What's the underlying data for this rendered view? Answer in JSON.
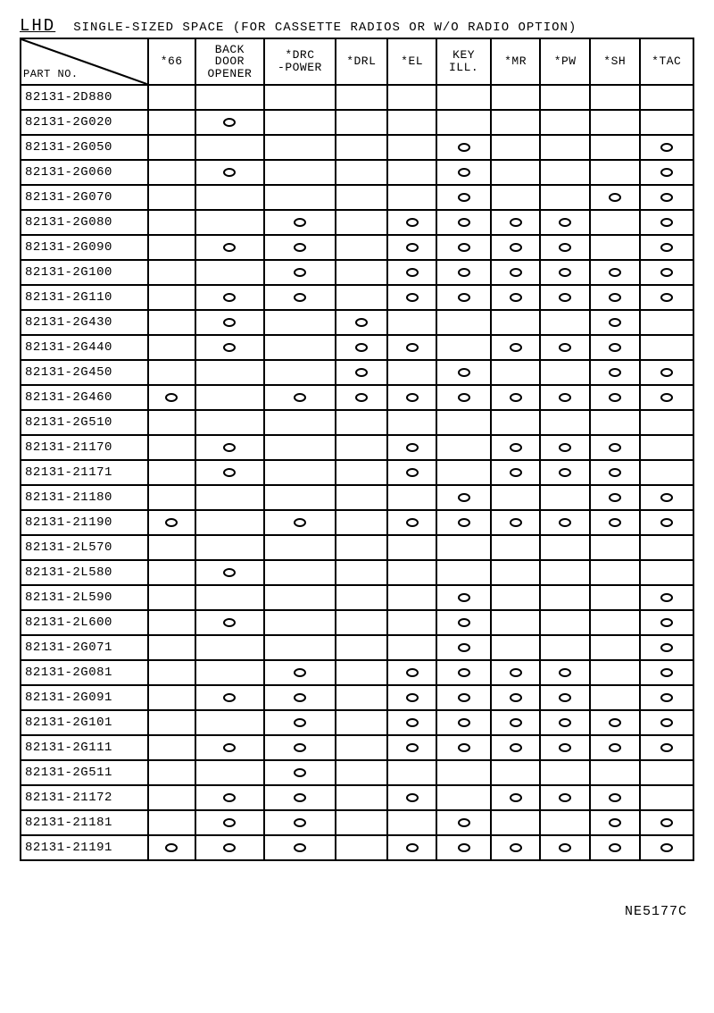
{
  "header": {
    "lhd": "LHD",
    "subtitle": "SINGLE-SIZED SPACE (FOR CASSETTE RADIOS OR W/O RADIO OPTION)"
  },
  "footer": "NE5177C",
  "columns": [
    "PART NO.",
    "*66",
    "BACK\nDOOR\nOPENER",
    "*DRC\n-POWER",
    "*DRL",
    "*EL",
    "KEY\nILL.",
    "*MR",
    "*PW",
    "*SH",
    "*TAC"
  ],
  "rows": [
    {
      "pn": "82131-2D880",
      "m": [
        0,
        0,
        0,
        0,
        0,
        0,
        0,
        0,
        0,
        0
      ]
    },
    {
      "pn": "82131-2G020",
      "m": [
        0,
        1,
        0,
        0,
        0,
        0,
        0,
        0,
        0,
        0
      ]
    },
    {
      "pn": "82131-2G050",
      "m": [
        0,
        0,
        0,
        0,
        0,
        1,
        0,
        0,
        0,
        1
      ]
    },
    {
      "pn": "82131-2G060",
      "m": [
        0,
        1,
        0,
        0,
        0,
        1,
        0,
        0,
        0,
        1
      ]
    },
    {
      "pn": "82131-2G070",
      "m": [
        0,
        0,
        0,
        0,
        0,
        1,
        0,
        0,
        1,
        1
      ]
    },
    {
      "pn": "82131-2G080",
      "m": [
        0,
        0,
        1,
        0,
        1,
        1,
        1,
        1,
        0,
        1
      ]
    },
    {
      "pn": "82131-2G090",
      "m": [
        0,
        1,
        1,
        0,
        1,
        1,
        1,
        1,
        0,
        1
      ]
    },
    {
      "pn": "82131-2G100",
      "m": [
        0,
        0,
        1,
        0,
        1,
        1,
        1,
        1,
        1,
        1
      ]
    },
    {
      "pn": "82131-2G110",
      "m": [
        0,
        1,
        1,
        0,
        1,
        1,
        1,
        1,
        1,
        1
      ]
    },
    {
      "pn": "82131-2G430",
      "m": [
        0,
        1,
        0,
        1,
        0,
        0,
        0,
        0,
        1,
        0
      ]
    },
    {
      "pn": "82131-2G440",
      "m": [
        0,
        1,
        0,
        1,
        1,
        0,
        1,
        1,
        1,
        0
      ]
    },
    {
      "pn": "82131-2G450",
      "m": [
        0,
        0,
        0,
        1,
        0,
        1,
        0,
        0,
        1,
        1
      ]
    },
    {
      "pn": "82131-2G460",
      "m": [
        1,
        0,
        1,
        1,
        1,
        1,
        1,
        1,
        1,
        1
      ]
    },
    {
      "pn": "82131-2G510",
      "m": [
        0,
        0,
        0,
        0,
        0,
        0,
        0,
        0,
        0,
        0
      ]
    },
    {
      "pn": "82131-21170",
      "m": [
        0,
        1,
        0,
        0,
        1,
        0,
        1,
        1,
        1,
        0
      ]
    },
    {
      "pn": "82131-21171",
      "m": [
        0,
        1,
        0,
        0,
        1,
        0,
        1,
        1,
        1,
        0
      ]
    },
    {
      "pn": "82131-21180",
      "m": [
        0,
        0,
        0,
        0,
        0,
        1,
        0,
        0,
        1,
        1
      ]
    },
    {
      "pn": "82131-21190",
      "m": [
        1,
        0,
        1,
        0,
        1,
        1,
        1,
        1,
        1,
        1
      ]
    },
    {
      "pn": "82131-2L570",
      "m": [
        0,
        0,
        0,
        0,
        0,
        0,
        0,
        0,
        0,
        0
      ]
    },
    {
      "pn": "82131-2L580",
      "m": [
        0,
        1,
        0,
        0,
        0,
        0,
        0,
        0,
        0,
        0
      ]
    },
    {
      "pn": "82131-2L590",
      "m": [
        0,
        0,
        0,
        0,
        0,
        1,
        0,
        0,
        0,
        1
      ]
    },
    {
      "pn": "82131-2L600",
      "m": [
        0,
        1,
        0,
        0,
        0,
        1,
        0,
        0,
        0,
        1
      ]
    },
    {
      "pn": "82131-2G071",
      "m": [
        0,
        0,
        0,
        0,
        0,
        1,
        0,
        0,
        0,
        1
      ]
    },
    {
      "pn": "82131-2G081",
      "m": [
        0,
        0,
        1,
        0,
        1,
        1,
        1,
        1,
        0,
        1
      ]
    },
    {
      "pn": "82131-2G091",
      "m": [
        0,
        1,
        1,
        0,
        1,
        1,
        1,
        1,
        0,
        1
      ]
    },
    {
      "pn": "82131-2G101",
      "m": [
        0,
        0,
        1,
        0,
        1,
        1,
        1,
        1,
        1,
        1
      ]
    },
    {
      "pn": "82131-2G111",
      "m": [
        0,
        1,
        1,
        0,
        1,
        1,
        1,
        1,
        1,
        1
      ]
    },
    {
      "pn": "82131-2G511",
      "m": [
        0,
        0,
        1,
        0,
        0,
        0,
        0,
        0,
        0,
        0
      ]
    },
    {
      "pn": "82131-21172",
      "m": [
        0,
        1,
        1,
        0,
        1,
        0,
        1,
        1,
        1,
        0
      ]
    },
    {
      "pn": "82131-21181",
      "m": [
        0,
        1,
        1,
        0,
        0,
        1,
        0,
        0,
        1,
        1
      ]
    },
    {
      "pn": "82131-21191",
      "m": [
        1,
        1,
        1,
        0,
        1,
        1,
        1,
        1,
        1,
        1
      ]
    }
  ],
  "style": {
    "mark_shape": "ellipse",
    "mark_border": "#000000",
    "background": "#ffffff",
    "font": "monospace"
  }
}
